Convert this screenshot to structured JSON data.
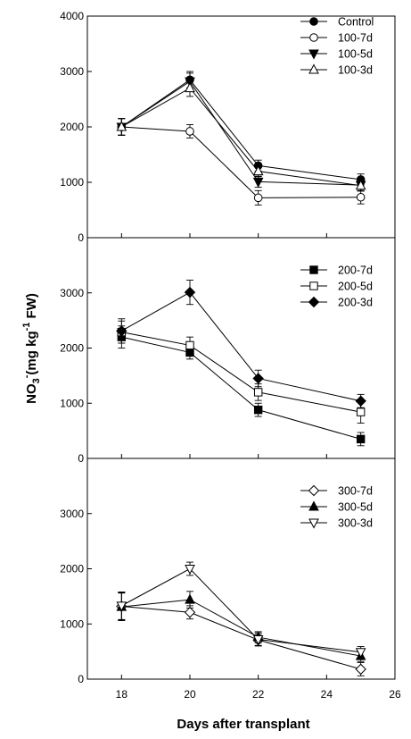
{
  "chart_data": {
    "type": "line",
    "xlabel": "Days after transplant",
    "ylabel": {
      "main": "NO",
      "sub": "3",
      "sup_minus": "-",
      "paren": "(mg kg",
      "sup": "-1",
      "tail": " FW)"
    },
    "xlim": [
      17,
      26
    ],
    "xticks": [
      18,
      20,
      22,
      24,
      26
    ],
    "xtick_labels": [
      "18",
      "20",
      "22",
      "24",
      "26"
    ],
    "panels": [
      {
        "ylim": [
          0,
          4000
        ],
        "yticks": [
          0,
          1000,
          2000,
          3000,
          4000
        ],
        "ytick_labels": [
          "0",
          "1000",
          "2000",
          "3000",
          "4000"
        ],
        "series": [
          {
            "name": "Control",
            "marker": "circle-filled",
            "x": [
              18,
              20,
              22,
              25
            ],
            "y": [
              2000,
              2850,
              1300,
              1050
            ],
            "err": [
              150,
              150,
              100,
              100
            ]
          },
          {
            "name": "100-7d",
            "marker": "circle-open",
            "x": [
              18,
              20,
              22,
              25
            ],
            "y": [
              2000,
              1920,
              720,
              730
            ],
            "err": [
              150,
              120,
              130,
              120
            ]
          },
          {
            "name": "100-5d",
            "marker": "tri-down-filled",
            "x": [
              18,
              20,
              22,
              25
            ],
            "y": [
              2000,
              2820,
              1010,
              950
            ],
            "err": [
              150,
              150,
              100,
              100
            ]
          },
          {
            "name": "100-3d",
            "marker": "tri-up-open",
            "x": [
              18,
              20,
              22,
              25
            ],
            "y": [
              2000,
              2700,
              1200,
              940
            ],
            "err": [
              150,
              150,
              100,
              100
            ]
          }
        ]
      },
      {
        "ylim": [
          0,
          4000
        ],
        "yticks": [
          0,
          1000,
          2000,
          3000
        ],
        "ytick_labels": [
          "0",
          "1000",
          "2000",
          "3000"
        ],
        "series": [
          {
            "name": "200-7d",
            "marker": "square-filled",
            "x": [
              18,
              20,
              22,
              25
            ],
            "y": [
              2200,
              1920,
              880,
              350
            ],
            "err": [
              200,
              120,
              120,
              120
            ]
          },
          {
            "name": "200-5d",
            "marker": "square-open",
            "x": [
              18,
              20,
              22,
              25
            ],
            "y": [
              2290,
              2050,
              1200,
              840
            ],
            "err": [
              200,
              150,
              150,
              200
            ]
          },
          {
            "name": "200-3d",
            "marker": "diamond-filled",
            "x": [
              18,
              20,
              22,
              25
            ],
            "y": [
              2310,
              3010,
              1450,
              1040
            ],
            "err": [
              220,
              220,
              150,
              120
            ]
          }
        ]
      },
      {
        "ylim": [
          0,
          4000
        ],
        "yticks": [
          0,
          1000,
          2000,
          3000
        ],
        "ytick_labels": [
          "0",
          "1000",
          "2000",
          "3000"
        ],
        "series": [
          {
            "name": "300-7d",
            "marker": "diamond-open",
            "x": [
              18,
              20,
              22,
              25
            ],
            "y": [
              1320,
              1210,
              710,
              180
            ],
            "err": [
              250,
              120,
              100,
              120
            ]
          },
          {
            "name": "300-5d",
            "marker": "tri-up-filled",
            "x": [
              18,
              20,
              22,
              25
            ],
            "y": [
              1310,
              1440,
              760,
              420
            ],
            "err": [
              250,
              150,
              100,
              100
            ]
          },
          {
            "name": "300-3d",
            "marker": "tri-down-open",
            "x": [
              18,
              20,
              22,
              25
            ],
            "y": [
              1330,
              2000,
              720,
              490
            ],
            "err": [
              250,
              120,
              120,
              100
            ]
          }
        ]
      }
    ]
  }
}
